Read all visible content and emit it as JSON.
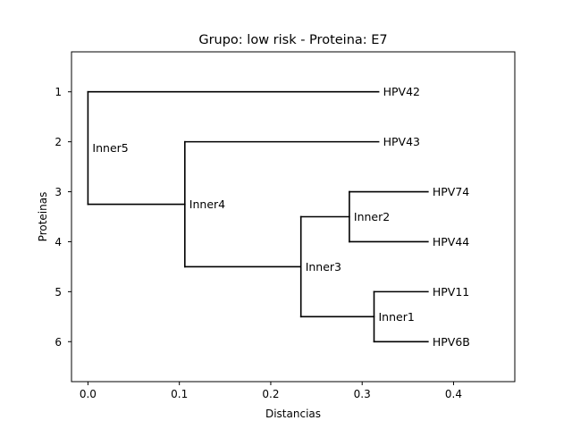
{
  "chart_data": {
    "type": "dendrogram",
    "title": "Grupo: low risk - Proteina: E7",
    "xlabel": "Distancias",
    "ylabel": "Proteinas",
    "xlim": [
      -0.018,
      0.467
    ],
    "ylim": [
      0.2,
      6.8
    ],
    "y_inverted": true,
    "grid": false,
    "x_ticks": [
      {
        "value": 0.0,
        "label": "0.0"
      },
      {
        "value": 0.1,
        "label": "0.1"
      },
      {
        "value": 0.2,
        "label": "0.2"
      },
      {
        "value": 0.3,
        "label": "0.3"
      },
      {
        "value": 0.4,
        "label": "0.4"
      }
    ],
    "y_ticks": [
      {
        "value": 1,
        "label": "1"
      },
      {
        "value": 2,
        "label": "2"
      },
      {
        "value": 3,
        "label": "3"
      },
      {
        "value": 4,
        "label": "4"
      },
      {
        "value": 5,
        "label": "5"
      },
      {
        "value": 6,
        "label": "6"
      }
    ],
    "leaves": [
      {
        "name": "HPV42",
        "x": 0.318,
        "y": 1
      },
      {
        "name": "HPV43",
        "x": 0.318,
        "y": 2
      },
      {
        "name": "HPV74",
        "x": 0.372,
        "y": 3
      },
      {
        "name": "HPV44",
        "x": 0.372,
        "y": 4
      },
      {
        "name": "HPV11",
        "x": 0.372,
        "y": 5
      },
      {
        "name": "HPV6B",
        "x": 0.372,
        "y": 6
      }
    ],
    "inner_nodes": [
      {
        "name": "Inner1",
        "x": 0.313,
        "y": 5.5,
        "children": [
          "HPV11",
          "HPV6B"
        ]
      },
      {
        "name": "Inner2",
        "x": 0.286,
        "y": 3.5,
        "children": [
          "HPV74",
          "HPV44"
        ]
      },
      {
        "name": "Inner3",
        "x": 0.233,
        "y": 4.5,
        "children": [
          "Inner2",
          "Inner1"
        ]
      },
      {
        "name": "Inner4",
        "x": 0.106,
        "y": 3.25,
        "children": [
          "HPV43",
          "Inner3"
        ]
      },
      {
        "name": "Inner5",
        "x": 0.0,
        "y": 2.125,
        "children": [
          "HPV42",
          "Inner4"
        ]
      }
    ]
  }
}
